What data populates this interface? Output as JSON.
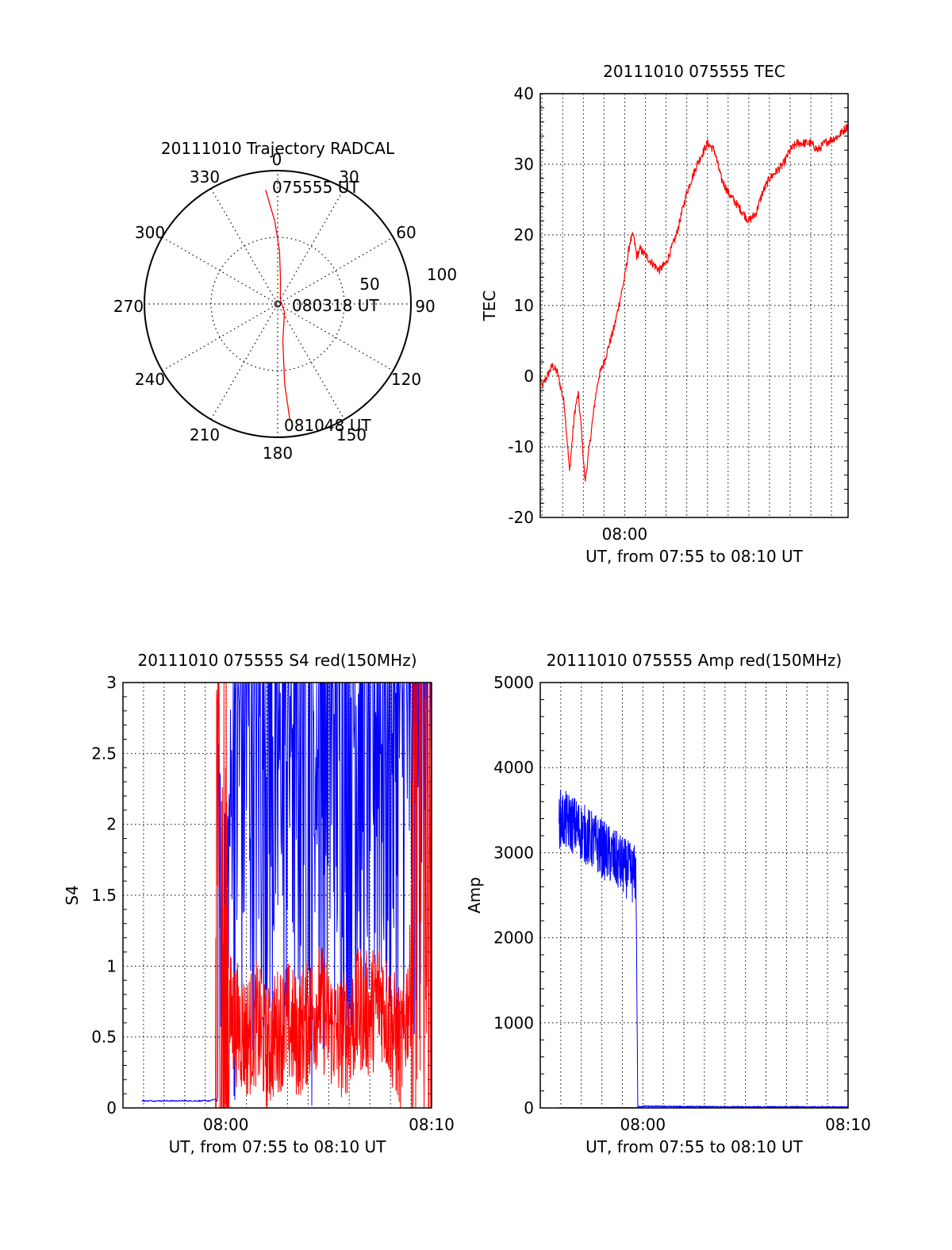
{
  "colors": {
    "red": "#ff0000",
    "blue": "#0000ff",
    "axis": "#000000",
    "grid": "#000000"
  },
  "chart_data": [
    {
      "type": "polar",
      "title": "20111010 Trajectory RADCAL",
      "angle_labels": [
        "0",
        "30",
        "60",
        "90",
        "120",
        "150",
        "180",
        "210",
        "240",
        "270",
        "300",
        "330"
      ],
      "radius_labels": [
        "50",
        "100"
      ],
      "trajectory": {
        "color": "red",
        "points": [
          {
            "azimuth_deg": 354,
            "zenith_deg": 86
          },
          {
            "azimuth_deg": 358,
            "zenith_deg": 62
          },
          {
            "azimuth_deg": 2,
            "zenith_deg": 40
          },
          {
            "azimuth_deg": 6,
            "zenith_deg": 20
          },
          {
            "azimuth_deg": 30,
            "zenith_deg": 4
          },
          {
            "azimuth_deg": 140,
            "zenith_deg": 8
          },
          {
            "azimuth_deg": 172,
            "zenith_deg": 28
          },
          {
            "azimuth_deg": 175,
            "zenith_deg": 60
          },
          {
            "azimuth_deg": 174,
            "zenith_deg": 87
          }
        ]
      },
      "annotations": [
        "075555 UT",
        "080318 UT",
        "081048 UT"
      ]
    },
    {
      "type": "line",
      "title": "20111010 075555 TEC",
      "xlabel": "UT, from 07:55 to 08:10 UT",
      "ylabel": "TEC",
      "xlim": [
        "07:55:55",
        "08:10:48"
      ],
      "ylim": [
        -20,
        40
      ],
      "yticks": [
        "-20",
        "-10",
        "0",
        "10",
        "20",
        "30",
        "40"
      ],
      "xtick_labels": [
        {
          "t": "08:00:00",
          "label": "08:00"
        }
      ],
      "grid": true,
      "series": [
        {
          "color": "red",
          "points": [
            [
              "07:55:55",
              0
            ],
            [
              "07:56:00",
              -1.5
            ],
            [
              "07:56:30",
              1.5
            ],
            [
              "07:56:45",
              0.5
            ],
            [
              "07:57:05",
              -4
            ],
            [
              "07:57:20",
              -13.5
            ],
            [
              "07:57:35",
              -5
            ],
            [
              "07:57:45",
              -2.5
            ],
            [
              "07:57:55",
              -8
            ],
            [
              "07:58:05",
              -15
            ],
            [
              "07:58:20",
              -9
            ],
            [
              "07:58:35",
              -3
            ],
            [
              "07:58:45",
              0
            ],
            [
              "07:59:00",
              2
            ],
            [
              "07:59:30",
              7
            ],
            [
              "08:00:00",
              14
            ],
            [
              "08:00:15",
              19
            ],
            [
              "08:00:25",
              20
            ],
            [
              "08:00:35",
              17
            ],
            [
              "08:00:45",
              18
            ],
            [
              "08:01:20",
              16
            ],
            [
              "08:01:40",
              15
            ],
            [
              "08:02:00",
              16
            ],
            [
              "08:02:30",
              20
            ],
            [
              "08:03:00",
              26
            ],
            [
              "08:03:30",
              30
            ],
            [
              "08:04:00",
              33
            ],
            [
              "08:04:20",
              32
            ],
            [
              "08:04:40",
              28
            ],
            [
              "08:05:00",
              26
            ],
            [
              "08:05:30",
              24
            ],
            [
              "08:06:00",
              22
            ],
            [
              "08:06:20",
              23
            ],
            [
              "08:06:40",
              26
            ],
            [
              "08:07:00",
              28
            ],
            [
              "08:07:20",
              29
            ],
            [
              "08:07:40",
              30
            ],
            [
              "08:08:00",
              32
            ],
            [
              "08:08:20",
              33
            ],
            [
              "08:08:40",
              33
            ],
            [
              "08:09:00",
              33
            ],
            [
              "08:09:20",
              32
            ],
            [
              "08:09:40",
              33
            ],
            [
              "08:10:20",
              34
            ],
            [
              "08:10:48",
              35.5
            ]
          ]
        }
      ]
    },
    {
      "type": "line",
      "title": "20111010 075555 S4 red(150MHz)",
      "xlabel": "UT, from 07:55 to 08:10 UT",
      "ylabel": "S4",
      "xlim": [
        "07:55:00",
        "08:10:00"
      ],
      "ylim": [
        0,
        3
      ],
      "yticks": [
        "0",
        "0.5",
        "1",
        "1.5",
        "2",
        "2.5",
        "3"
      ],
      "xtick_labels": [
        {
          "t": "08:00:00",
          "label": "08:00"
        },
        {
          "t": "08:10:00",
          "label": "08:10"
        }
      ],
      "grid": true,
      "series": [
        {
          "color": "blue",
          "points": [
            [
              "07:55:55",
              0.05
            ],
            [
              "07:59:15",
              0.05
            ],
            [
              "07:59:25",
              0.06
            ],
            [
              "07:59:35",
              0.05
            ],
            [
              "07:59:40",
              2.3
            ],
            [
              "07:59:45",
              1.3
            ],
            [
              "07:59:55",
              1.1
            ],
            [
              "08:00:10",
              1.9
            ],
            [
              "08:00:25",
              2.6
            ],
            [
              "08:01:00",
              3
            ],
            [
              "08:02:00",
              3
            ],
            [
              "08:02:40",
              2.4
            ],
            [
              "08:03:00",
              3
            ],
            [
              "08:04:00",
              3
            ],
            [
              "08:04:20",
              2.2
            ],
            [
              "08:04:40",
              3
            ],
            [
              "08:06:00",
              3
            ],
            [
              "08:07:00",
              3
            ],
            [
              "08:08:00",
              3
            ],
            [
              "08:09:00",
              3
            ],
            [
              "08:10:00",
              3
            ]
          ]
        },
        {
          "color": "red",
          "points": [
            [
              "07:59:30",
              0
            ],
            [
              "07:59:35",
              3
            ],
            [
              "07:59:40",
              1.5
            ],
            [
              "07:59:50",
              0.9
            ],
            [
              "08:00:00",
              0.7
            ],
            [
              "08:00:30",
              0.6
            ],
            [
              "08:01:00",
              0.5
            ],
            [
              "08:01:30",
              0.6
            ],
            [
              "08:02:00",
              0.4
            ],
            [
              "08:02:30",
              0.55
            ],
            [
              "08:03:00",
              0.6
            ],
            [
              "08:03:30",
              0.5
            ],
            [
              "08:04:00",
              0.6
            ],
            [
              "08:04:30",
              0.75
            ],
            [
              "08:05:00",
              0.6
            ],
            [
              "08:05:30",
              0.5
            ],
            [
              "08:06:00",
              0.55
            ],
            [
              "08:06:30",
              0.7
            ],
            [
              "08:07:00",
              0.65
            ],
            [
              "08:07:30",
              0.8
            ],
            [
              "08:08:00",
              0.6
            ],
            [
              "08:08:30",
              0.4
            ],
            [
              "08:09:00",
              0.9
            ],
            [
              "08:09:30",
              3
            ],
            [
              "08:10:00",
              2
            ]
          ]
        }
      ]
    },
    {
      "type": "line",
      "title": "20111010 075555 Amp red(150MHz)",
      "xlabel": "UT, from 07:55 to 08:10 UT",
      "ylabel": "Amp",
      "xlim": [
        "07:55:00",
        "08:10:00"
      ],
      "ylim": [
        0,
        5000
      ],
      "yticks": [
        "0",
        "1000",
        "2000",
        "3000",
        "4000",
        "5000"
      ],
      "xtick_labels": [
        {
          "t": "08:00:00",
          "label": "08:00"
        },
        {
          "t": "08:10:00",
          "label": "08:10"
        }
      ],
      "grid": true,
      "series": [
        {
          "color": "blue",
          "points": [
            [
              "07:55:55",
              3400
            ],
            [
              "07:56:30",
              3350
            ],
            [
              "07:57:00",
              3250
            ],
            [
              "07:57:30",
              3150
            ],
            [
              "07:58:00",
              3050
            ],
            [
              "07:58:30",
              2950
            ],
            [
              "07:59:00",
              2850
            ],
            [
              "07:59:30",
              2750
            ],
            [
              "07:59:40",
              2750
            ],
            [
              "07:59:45",
              10
            ],
            [
              "08:00:00",
              20
            ],
            [
              "08:02:00",
              15
            ],
            [
              "08:05:00",
              12
            ],
            [
              "08:08:00",
              12
            ],
            [
              "08:10:00",
              10
            ]
          ]
        },
        {
          "color": "red",
          "points": [
            [
              "07:55:55",
              5
            ],
            [
              "07:59:45",
              5
            ]
          ]
        }
      ]
    }
  ]
}
